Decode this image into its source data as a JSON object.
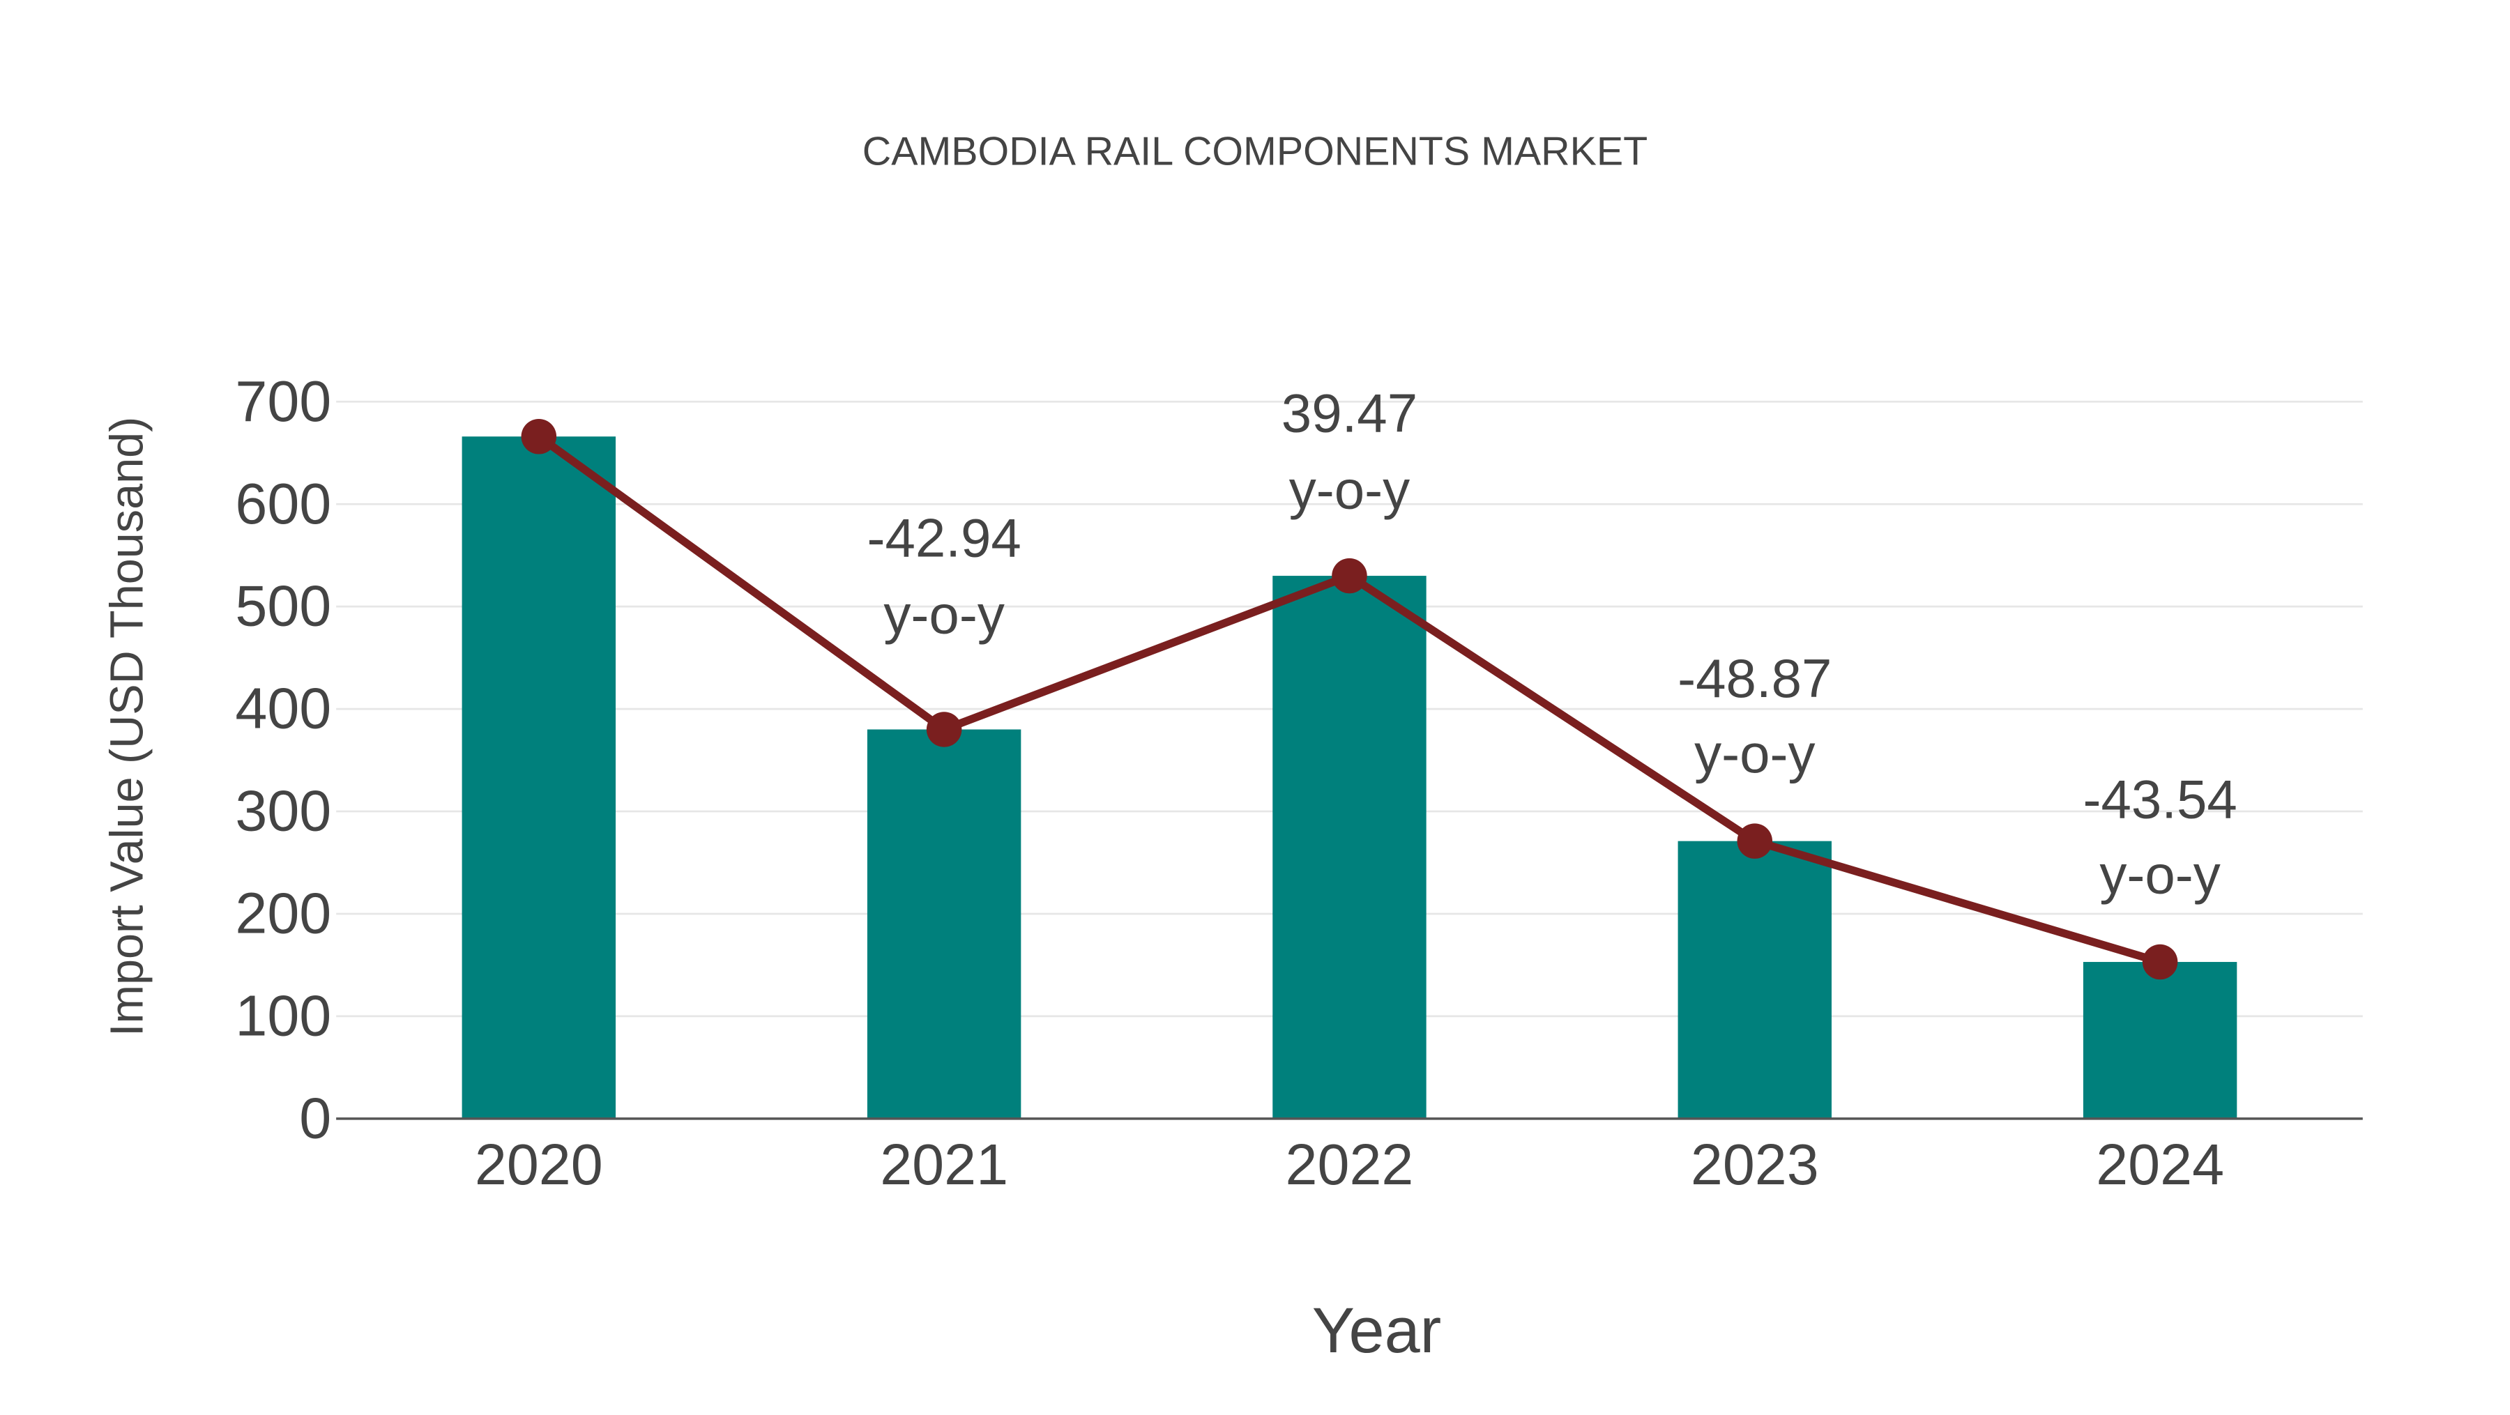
{
  "chart_data": {
    "type": "bar",
    "title": "CAMBODIA RAIL COMPONENTS MARKET",
    "xlabel": "Year",
    "ylabel": "Import Value (USD Thousand)",
    "categories": [
      "2020",
      "2021",
      "2022",
      "2023",
      "2024"
    ],
    "series": [
      {
        "name": "Import Value",
        "type": "bar",
        "color": "#00807C",
        "values": [
          666,
          380,
          530,
          271,
          153
        ]
      },
      {
        "name": "Trend",
        "type": "line",
        "color": "#7A1F1F",
        "values": [
          666,
          380,
          530,
          271,
          153
        ]
      }
    ],
    "annotations": [
      {
        "category": "2021",
        "value": "-42.94",
        "suffix": "y-o-y"
      },
      {
        "category": "2022",
        "value": "39.47",
        "suffix": "y-o-y"
      },
      {
        "category": "2023",
        "value": "-48.87",
        "suffix": "y-o-y"
      },
      {
        "category": "2024",
        "value": "-43.54",
        "suffix": "y-o-y"
      }
    ],
    "yticks": [
      "0",
      "100",
      "200",
      "300",
      "400",
      "500",
      "600",
      "700"
    ],
    "ylim": [
      0,
      700
    ],
    "grid": true,
    "legend": "none"
  },
  "colors": {
    "bar": "#00807C",
    "line": "#7A1F1F",
    "text": "#444444",
    "grid": "#E6E6E6",
    "axis": "#555555"
  }
}
